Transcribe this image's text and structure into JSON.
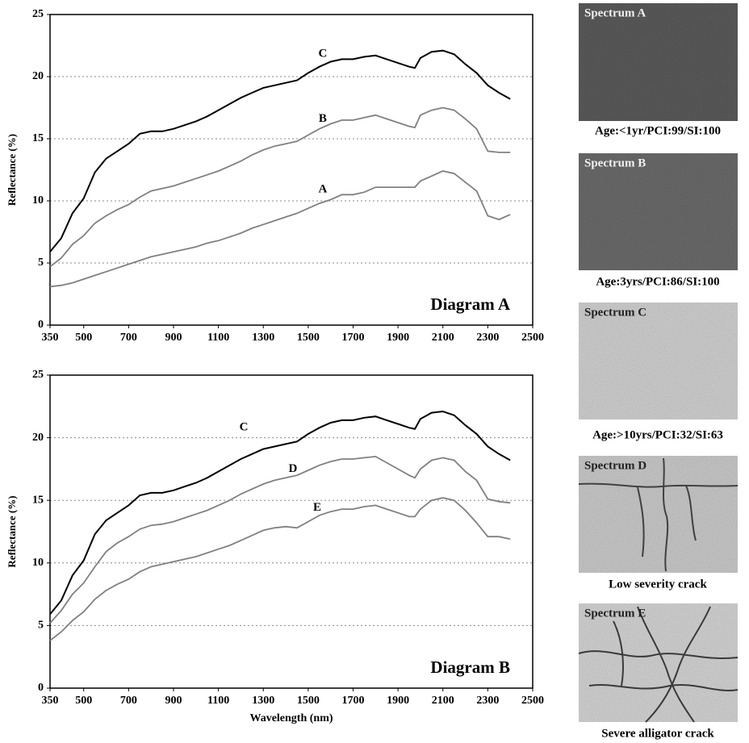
{
  "chart_data": [
    {
      "type": "line",
      "title": "Diagram A",
      "y_label": "Reflectance (%)",
      "x": [
        350,
        400,
        450,
        500,
        550,
        600,
        650,
        700,
        750,
        800,
        850,
        900,
        950,
        1000,
        1050,
        1100,
        1150,
        1200,
        1250,
        1300,
        1350,
        1400,
        1450,
        1500,
        1550,
        1600,
        1650,
        1700,
        1750,
        1800,
        1850,
        1900,
        1950,
        1975,
        2000,
        2050,
        2100,
        2150,
        2200,
        2250,
        2300,
        2350,
        2400
      ],
      "xlim": [
        350,
        2500
      ],
      "xticks": [
        350,
        500,
        700,
        900,
        1100,
        1300,
        1500,
        1700,
        1900,
        2100,
        2300,
        2500
      ],
      "ylim": [
        0,
        25
      ],
      "yticks": [
        0,
        5,
        10,
        15,
        20,
        25
      ],
      "grid": true,
      "series": [
        {
          "name": "C",
          "color": "#000000",
          "values": [
            5.9,
            7.0,
            9.0,
            10.2,
            12.3,
            13.4,
            14.0,
            14.6,
            15.4,
            15.6,
            15.6,
            15.8,
            16.1,
            16.4,
            16.8,
            17.3,
            17.8,
            18.3,
            18.7,
            19.1,
            19.3,
            19.5,
            19.7,
            20.3,
            20.8,
            21.2,
            21.4,
            21.4,
            21.6,
            21.7,
            21.4,
            21.1,
            20.8,
            20.7,
            21.5,
            22.0,
            22.1,
            21.8,
            21.0,
            20.3,
            19.3,
            18.7,
            18.2
          ]
        },
        {
          "name": "B",
          "color": "#808080",
          "values": [
            4.7,
            5.4,
            6.5,
            7.2,
            8.2,
            8.8,
            9.3,
            9.7,
            10.3,
            10.8,
            11.0,
            11.2,
            11.5,
            11.8,
            12.1,
            12.4,
            12.8,
            13.2,
            13.7,
            14.1,
            14.4,
            14.6,
            14.8,
            15.3,
            15.8,
            16.2,
            16.5,
            16.5,
            16.7,
            16.9,
            16.6,
            16.3,
            16.0,
            15.9,
            16.9,
            17.3,
            17.5,
            17.3,
            16.6,
            15.8,
            14.0,
            13.9,
            13.9
          ]
        },
        {
          "name": "A",
          "color": "#808080",
          "values": [
            3.1,
            3.2,
            3.4,
            3.7,
            4.0,
            4.3,
            4.6,
            4.9,
            5.2,
            5.5,
            5.7,
            5.9,
            6.1,
            6.3,
            6.6,
            6.8,
            7.1,
            7.4,
            7.8,
            8.1,
            8.4,
            8.7,
            9.0,
            9.4,
            9.8,
            10.1,
            10.5,
            10.5,
            10.7,
            11.1,
            11.1,
            11.1,
            11.1,
            11.1,
            11.6,
            12.0,
            12.4,
            12.2,
            11.5,
            10.8,
            8.8,
            8.5,
            8.9
          ]
        }
      ]
    },
    {
      "type": "line",
      "title": "Diagram B",
      "y_label": "Reflectance (%)",
      "x_label": "Wavelength (nm)",
      "x": [
        350,
        400,
        450,
        500,
        550,
        600,
        650,
        700,
        750,
        800,
        850,
        900,
        950,
        1000,
        1050,
        1100,
        1150,
        1200,
        1250,
        1300,
        1350,
        1400,
        1450,
        1500,
        1550,
        1600,
        1650,
        1700,
        1750,
        1800,
        1850,
        1900,
        1950,
        1975,
        2000,
        2050,
        2100,
        2150,
        2200,
        2250,
        2300,
        2350,
        2400
      ],
      "xlim": [
        350,
        2500
      ],
      "xticks": [
        350,
        500,
        700,
        900,
        1100,
        1300,
        1500,
        1700,
        1900,
        2100,
        2300,
        2500
      ],
      "ylim": [
        0,
        25
      ],
      "yticks": [
        0,
        5,
        10,
        15,
        20,
        25
      ],
      "grid": true,
      "series": [
        {
          "name": "C",
          "color": "#000000",
          "values": [
            5.9,
            7.0,
            9.0,
            10.2,
            12.3,
            13.4,
            14.0,
            14.6,
            15.4,
            15.6,
            15.6,
            15.8,
            16.1,
            16.4,
            16.8,
            17.3,
            17.8,
            18.3,
            18.7,
            19.1,
            19.3,
            19.5,
            19.7,
            20.3,
            20.8,
            21.2,
            21.4,
            21.4,
            21.6,
            21.7,
            21.4,
            21.1,
            20.8,
            20.7,
            21.5,
            22.0,
            22.1,
            21.8,
            21.0,
            20.3,
            19.3,
            18.7,
            18.2
          ]
        },
        {
          "name": "D",
          "color": "#808080",
          "values": [
            5.2,
            6.2,
            7.5,
            8.4,
            9.7,
            10.9,
            11.6,
            12.1,
            12.7,
            13.0,
            13.1,
            13.3,
            13.6,
            13.9,
            14.2,
            14.6,
            15.0,
            15.5,
            15.9,
            16.3,
            16.6,
            16.8,
            17.0,
            17.4,
            17.8,
            18.1,
            18.3,
            18.3,
            18.4,
            18.5,
            18.0,
            17.5,
            17.0,
            16.8,
            17.5,
            18.2,
            18.4,
            18.2,
            17.3,
            16.6,
            15.1,
            14.9,
            14.8
          ]
        },
        {
          "name": "E",
          "color": "#808080",
          "values": [
            3.8,
            4.5,
            5.4,
            6.1,
            7.1,
            7.8,
            8.3,
            8.7,
            9.3,
            9.7,
            9.9,
            10.1,
            10.3,
            10.5,
            10.8,
            11.1,
            11.4,
            11.8,
            12.2,
            12.6,
            12.8,
            12.9,
            12.8,
            13.3,
            13.8,
            14.1,
            14.3,
            14.3,
            14.5,
            14.6,
            14.3,
            14.0,
            13.7,
            13.7,
            14.3,
            15.0,
            15.2,
            15.0,
            14.2,
            13.2,
            12.1,
            12.1,
            11.9
          ]
        }
      ]
    }
  ],
  "panels": [
    {
      "label": "Spectrum A",
      "caption": "Age:<1yr/PCI:99/SI:100"
    },
    {
      "label": "Spectrum B",
      "caption": "Age:3yrs/PCI:86/SI:100"
    },
    {
      "label": "Spectrum C",
      "caption": "Age:>10yrs/PCI:32/SI:63"
    },
    {
      "label": "Spectrum D",
      "caption": "Low severity crack"
    },
    {
      "label": "Spectrum E",
      "caption": "Severe alligator crack"
    }
  ]
}
